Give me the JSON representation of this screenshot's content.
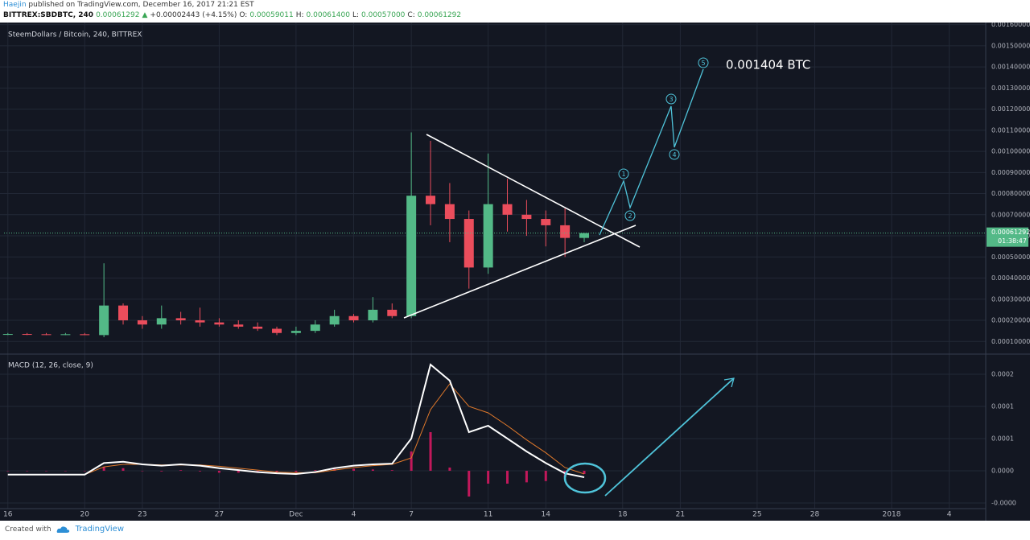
{
  "header": {
    "publisher": "Haejin",
    "published": "published on TradingView.com, December 16, 2017 21:21 EST",
    "symbol": "BITTREX:SBDBTC, 240",
    "price": "0.00061292",
    "arrow": "▲",
    "change": "+0.00002443 (+4.15%)",
    "o_label": "O:",
    "open": "0.00059011",
    "h_label": "H:",
    "high": "0.00061400",
    "l_label": "L:",
    "low": "0.00057000",
    "c_label": "C:",
    "close": "0.00061292"
  },
  "chart_data": [
    {
      "type": "candlestick",
      "title": "SteemDollars / Bitcoin, 240, BITTREX",
      "x": [
        0,
        1,
        2,
        3,
        4,
        5,
        6,
        7,
        8,
        9,
        10,
        11,
        12,
        13,
        14,
        15,
        16,
        17,
        18,
        19,
        20,
        21,
        22,
        23,
        24,
        25,
        26,
        27,
        28,
        29,
        30
      ],
      "open": [
        0.000132,
        0.000135,
        0.000134,
        0.000133,
        0.000134,
        0.00013,
        0.00027,
        0.0002,
        0.00018,
        0.00021,
        0.0002,
        0.00019,
        0.00018,
        0.00017,
        0.00016,
        0.00014,
        0.00015,
        0.00018,
        0.00022,
        0.0002,
        0.00025,
        0.00022,
        0.00079,
        0.00075,
        0.00068,
        0.00045,
        0.00075,
        0.0007,
        0.00068,
        0.00065,
        0.00059011
      ],
      "high": [
        0.00014,
        0.00014,
        0.00014,
        0.00014,
        0.00014,
        0.00047,
        0.00028,
        0.00022,
        0.00027,
        0.00024,
        0.00026,
        0.00021,
        0.0002,
        0.00019,
        0.00017,
        0.00017,
        0.0002,
        0.00025,
        0.00023,
        0.00031,
        0.00028,
        0.00109,
        0.00105,
        0.00085,
        0.00072,
        0.00099,
        0.00087,
        0.00077,
        0.00072,
        0.00073,
        0.000614
      ],
      "low": [
        0.00013,
        0.00013,
        0.00013,
        0.00013,
        0.00013,
        0.00012,
        0.00018,
        0.00016,
        0.00016,
        0.00018,
        0.00017,
        0.00017,
        0.00016,
        0.00015,
        0.00013,
        0.00013,
        0.00014,
        0.00017,
        0.00019,
        0.00019,
        0.00021,
        0.00021,
        0.00065,
        0.00057,
        0.00035,
        0.00042,
        0.00062,
        0.0006,
        0.00055,
        0.0005,
        0.00057
      ],
      "close": [
        0.000135,
        0.000134,
        0.000133,
        0.000134,
        0.00013,
        0.00027,
        0.0002,
        0.00018,
        0.00021,
        0.0002,
        0.00019,
        0.00018,
        0.00017,
        0.00016,
        0.00014,
        0.00015,
        0.00018,
        0.00022,
        0.0002,
        0.00025,
        0.00022,
        0.00079,
        0.00075,
        0.00068,
        0.00045,
        0.00075,
        0.0007,
        0.00068,
        0.00065,
        0.00059011,
        0.00061292
      ],
      "up_color": "#53b987",
      "down_color": "#eb4d5c",
      "xlim": [
        -0.2,
        50.9
      ],
      "xticks": [
        {
          "value": 0,
          "label": "16"
        },
        {
          "value": 4,
          "label": "20"
        },
        {
          "value": 7,
          "label": "23"
        },
        {
          "value": 11,
          "label": "27"
        },
        {
          "value": 15,
          "label": "Dec"
        },
        {
          "value": 18,
          "label": "4"
        },
        {
          "value": 21,
          "label": "7"
        },
        {
          "value": 25,
          "label": "11"
        },
        {
          "value": 28,
          "label": "14"
        },
        {
          "value": 32,
          "label": "18"
        },
        {
          "value": 35,
          "label": "21"
        },
        {
          "value": 39,
          "label": "25"
        },
        {
          "value": 42,
          "label": "28"
        },
        {
          "value": 46,
          "label": "2018"
        },
        {
          "value": 49,
          "label": "4"
        }
      ],
      "ylim": [
        4e-05,
        0.00161
      ],
      "yticks": [
        {
          "value": 0.0001,
          "label": "0.00010000"
        },
        {
          "value": 0.0002,
          "label": "0.00020000"
        },
        {
          "value": 0.0003,
          "label": "0.00030000"
        },
        {
          "value": 0.0004,
          "label": "0.00040000"
        },
        {
          "value": 0.0005,
          "label": "0.00050000"
        },
        {
          "value": 0.0006,
          "label": "0.00060000"
        },
        {
          "value": 0.0007,
          "label": "0.00070000"
        },
        {
          "value": 0.0008,
          "label": "0.00080000"
        },
        {
          "value": 0.0009,
          "label": "0.00090000"
        },
        {
          "value": 0.001,
          "label": "0.00100000"
        },
        {
          "value": 0.0011,
          "label": "0.00110000"
        },
        {
          "value": 0.0012,
          "label": "0.00120000"
        },
        {
          "value": 0.0013,
          "label": "0.00130000"
        },
        {
          "value": 0.0014,
          "label": "0.00140000"
        },
        {
          "value": 0.0015,
          "label": "0.00150000"
        },
        {
          "value": 0.0016,
          "label": "0.00160000"
        }
      ],
      "grid": true,
      "last_price": 0.00061292,
      "countdown": "01:38:47",
      "annotation": "0.001404 BTC",
      "wave_labels": [
        "1",
        "2",
        "3",
        "4",
        "5"
      ]
    },
    {
      "type": "macd",
      "title": "MACD (12, 26, close, 9)",
      "macd": [
        -6e-06,
        -6e-06,
        -6e-06,
        -6e-06,
        -6e-06,
        1.2e-05,
        1.4e-05,
        1e-05,
        8e-06,
        1e-05,
        8e-06,
        4e-06,
        1e-06,
        -2e-06,
        -4e-06,
        -5e-06,
        -2e-06,
        4e-06,
        8e-06,
        1e-05,
        1.1e-05,
        5e-05,
        0.000165,
        0.00014,
        6e-05,
        7e-05,
        5e-05,
        3e-05,
        1.2e-05,
        -4e-06,
        -1e-05
      ],
      "signal": [
        -6e-06,
        -6e-06,
        -6e-06,
        -6e-06,
        -6e-06,
        6e-06,
        1e-05,
        1e-05,
        9e-06,
        9e-06,
        9e-06,
        7e-06,
        4e-06,
        1e-06,
        -2e-06,
        -3e-06,
        -3e-06,
        1e-06,
        5e-06,
        8e-06,
        1e-05,
        2e-05,
        9.5e-05,
        0.000135,
        0.0001,
        9e-05,
        7e-05,
        4.8e-05,
        2.8e-05,
        5e-06,
        -5e-06
      ],
      "histogram": [
        0,
        0,
        0,
        0,
        0,
        6e-06,
        4e-06,
        0,
        -1e-06,
        1e-06,
        -1e-06,
        -3e-06,
        -3e-06,
        -3e-06,
        -2e-06,
        -2e-06,
        1e-06,
        3e-06,
        3e-06,
        2e-06,
        1e-06,
        3e-05,
        6e-05,
        5e-06,
        -4e-05,
        -2e-05,
        -2e-05,
        -1.8e-05,
        -1.6e-05,
        -1e-05,
        -5e-06
      ],
      "macd_color": "#ffffff",
      "signal_color": "#e0792b",
      "histogram_color": "#c2185b",
      "ylim": [
        -5.88e-05,
        0.0001725
      ],
      "yticks": [
        {
          "value": 0.00015,
          "label": "0.0002"
        },
        0.0001,
        {
          "value": 5e-05,
          "label": "0.0001"
        },
        {
          "value": 0,
          "label": "0.0000"
        },
        {
          "value": -5e-05,
          "label": "-0.0000"
        }
      ],
      "grid": true
    }
  ],
  "footer": {
    "created": "Created with",
    "brand": "TradingView"
  }
}
